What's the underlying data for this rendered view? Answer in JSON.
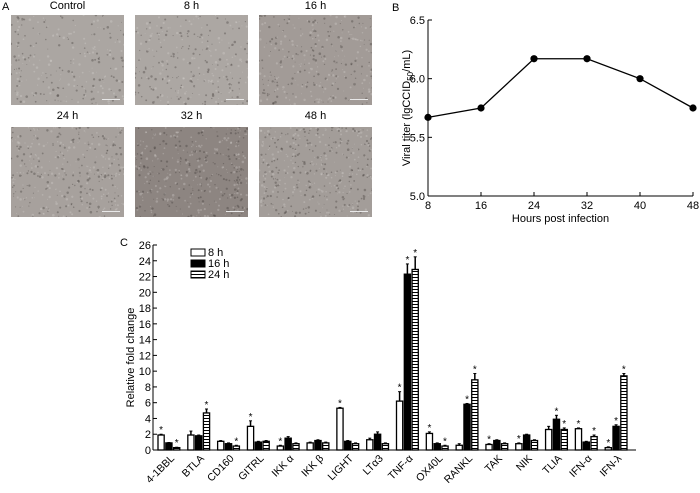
{
  "panelA": {
    "letter": "A",
    "images": [
      {
        "label": "Control",
        "tone": "#aba6a2"
      },
      {
        "label": "8 h",
        "tone": "#aca7a3"
      },
      {
        "label": "16 h",
        "tone": "#a29b97"
      },
      {
        "label": "24 h",
        "tone": "#a7a19d"
      },
      {
        "label": "32 h",
        "tone": "#8d8581"
      },
      {
        "label": "48 h",
        "tone": "#a39d99"
      }
    ]
  },
  "chart_data": [
    {
      "panel": "B",
      "type": "line",
      "title": "",
      "xlabel": "Hours post infection",
      "ylabel": "Viral titer (lgCCID50/mL)",
      "x": [
        8,
        16,
        24,
        32,
        40,
        48
      ],
      "values": [
        5.67,
        5.75,
        6.17,
        6.17,
        6.0,
        5.75
      ],
      "xlim": [
        8,
        48
      ],
      "ylim": [
        5.0,
        6.5
      ],
      "xticks": [
        "8",
        "16",
        "24",
        "32",
        "40",
        "48"
      ],
      "yticks": [
        "5.0",
        "5.5",
        "6.0",
        "6.5"
      ],
      "grid": false,
      "marker": "filled-circle"
    },
    {
      "panel": "C",
      "type": "bar",
      "title": "",
      "xlabel": "",
      "ylabel": "Relative fold change",
      "ylim": [
        0,
        26
      ],
      "yticks": [
        "0",
        "2",
        "4",
        "6",
        "8",
        "10",
        "12",
        "14",
        "16",
        "18",
        "20",
        "22",
        "24",
        "26"
      ],
      "legend_position": "top-left",
      "categories": [
        "4-1BBL",
        "BTLA",
        "CD160",
        "GITRL",
        "IKK α",
        "IKK β",
        "LIGHT",
        "LTα3",
        "TNF-α",
        "OX40L",
        "RANKL",
        "TAK",
        "NIK",
        "TLIA",
        "IFN-α",
        "IFN-λ"
      ],
      "series": [
        {
          "name": "8 h",
          "pattern": "open",
          "values": [
            1.9,
            1.9,
            1.1,
            3.0,
            0.5,
            0.9,
            5.3,
            1.3,
            6.2,
            2.1,
            0.6,
            0.7,
            0.8,
            2.6,
            2.7,
            0.3
          ],
          "errors": [
            0.1,
            0.5,
            0.1,
            0.7,
            0.1,
            0.1,
            0.1,
            0.2,
            1.2,
            0.2,
            0.2,
            0.1,
            0.1,
            0.4,
            0.1,
            0.1
          ],
          "significant": [
            true,
            false,
            false,
            true,
            true,
            false,
            true,
            false,
            true,
            true,
            false,
            true,
            true,
            false,
            true,
            true
          ]
        },
        {
          "name": "16 h",
          "pattern": "solid",
          "values": [
            0.9,
            1.8,
            0.8,
            1.0,
            1.5,
            1.2,
            1.1,
            2.0,
            22.3,
            0.8,
            5.8,
            1.2,
            1.9,
            3.9,
            1.0,
            3.0
          ],
          "errors": [
            0.05,
            0.1,
            0.1,
            0.1,
            0.2,
            0.1,
            0.1,
            0.3,
            1.3,
            0.1,
            0.1,
            0.1,
            0.1,
            0.5,
            0.1,
            0.2
          ],
          "significant": [
            false,
            false,
            false,
            false,
            false,
            false,
            false,
            false,
            true,
            false,
            true,
            false,
            false,
            true,
            false,
            true
          ]
        },
        {
          "name": "24 h",
          "pattern": "striped",
          "values": [
            0.3,
            4.7,
            0.5,
            1.1,
            0.8,
            0.9,
            0.8,
            0.8,
            22.9,
            0.5,
            8.9,
            0.8,
            1.2,
            2.6,
            1.7,
            9.4
          ],
          "errors": [
            0.05,
            0.5,
            0.1,
            0.1,
            0.1,
            0.1,
            0.1,
            0.1,
            1.6,
            0.1,
            0.8,
            0.1,
            0.1,
            0.2,
            0.2,
            0.3
          ],
          "significant": [
            true,
            true,
            true,
            false,
            false,
            false,
            false,
            false,
            true,
            true,
            true,
            false,
            false,
            true,
            true,
            true
          ]
        }
      ]
    }
  ]
}
